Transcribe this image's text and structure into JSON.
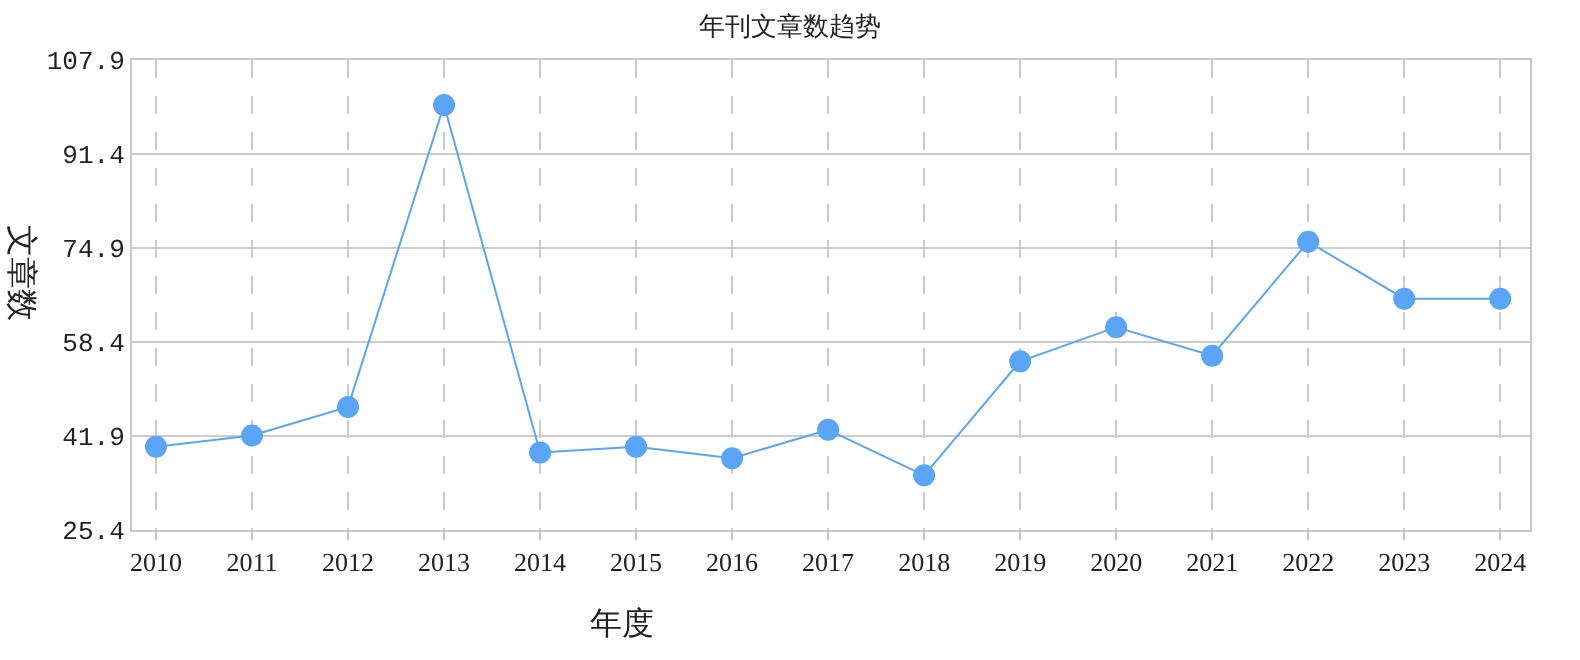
{
  "chart_data": {
    "type": "line",
    "title": "年刊文章数趋势",
    "xlabel": "年度",
    "ylabel": "文章数",
    "categories": [
      "2010",
      "2011",
      "2012",
      "2013",
      "2014",
      "2015",
      "2016",
      "2017",
      "2018",
      "2019",
      "2020",
      "2021",
      "2022",
      "2023",
      "2024"
    ],
    "series": [
      {
        "color": "#5aa5f5",
        "values": [
          40,
          42,
          47,
          100,
          39,
          40,
          38,
          43,
          35,
          55,
          61,
          56,
          76,
          66,
          66
        ]
      }
    ],
    "ylim": [
      25.4,
      107.9
    ],
    "yticks": [
      25.4,
      41.9,
      58.4,
      74.9,
      91.4,
      107.9
    ],
    "grid": true,
    "marker": "circle",
    "line_style": "solid",
    "legend": false
  }
}
